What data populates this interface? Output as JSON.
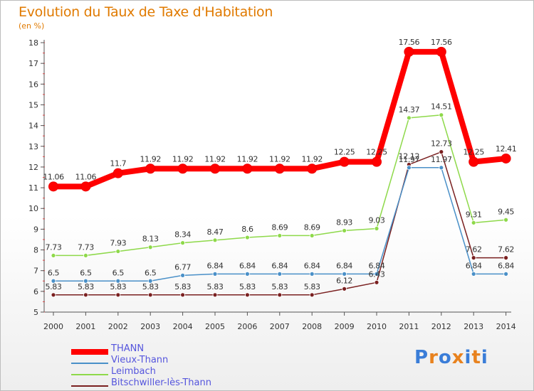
{
  "header": {
    "title": "Evolution du Taux de Taxe d'Habitation",
    "subtitle": "(en %)"
  },
  "logo": {
    "text": "Proxiti",
    "colors": [
      "#3a7dd8",
      "#e8821e",
      "#3a7dd8",
      "#e8821e",
      "#3a7dd8",
      "#e8821e",
      "#3a7dd8"
    ]
  },
  "chart_data": {
    "type": "line",
    "title": "Evolution du Taux de Taxe d'Habitation",
    "ylabel": "(en %)",
    "xlabel": "",
    "ylim": [
      5,
      18
    ],
    "yticks": [
      5,
      6,
      7,
      8,
      9,
      10,
      11,
      12,
      13,
      14,
      15,
      16,
      17,
      18
    ],
    "grid": false,
    "legend_position": "bottom-left",
    "x": [
      "2000",
      "2001",
      "2002",
      "2003",
      "2004",
      "2005",
      "2006",
      "2007",
      "2008",
      "2009",
      "2010",
      "2011",
      "2012",
      "2013",
      "2014"
    ],
    "series": [
      {
        "name": "THANN",
        "color": "#ff0000",
        "values": [
          11.06,
          11.06,
          11.7,
          11.92,
          11.92,
          11.92,
          11.92,
          11.92,
          11.92,
          12.25,
          12.25,
          17.56,
          17.56,
          12.25,
          12.41
        ],
        "labels": [
          "11.06",
          "11.06",
          "11.7",
          "11.92",
          "11.92",
          "11.92",
          "11.92",
          "11.92",
          "11.92",
          "12.25",
          "12.25",
          "17.56",
          "17.56",
          "12.25",
          "12.41"
        ]
      },
      {
        "name": "Vieux-Thann",
        "color": "#4a90c8",
        "values": [
          6.5,
          6.5,
          6.5,
          6.5,
          6.77,
          6.84,
          6.84,
          6.84,
          6.84,
          6.84,
          6.84,
          11.97,
          11.97,
          6.84,
          6.84
        ],
        "labels": [
          "6.5",
          "6.5",
          "6.5",
          "6.5",
          "6.77",
          "6.84",
          "6.84",
          "6.84",
          "6.84",
          "6.84",
          "6.84",
          "11.97",
          "11.97",
          "6.84",
          "6.84"
        ]
      },
      {
        "name": "Leimbach",
        "color": "#8ed94a",
        "values": [
          7.73,
          7.73,
          7.93,
          8.13,
          8.34,
          8.47,
          8.6,
          8.69,
          8.69,
          8.93,
          9.03,
          14.37,
          14.51,
          9.31,
          9.45
        ],
        "labels": [
          "7.73",
          "7.73",
          "7.93",
          "8.13",
          "8.34",
          "8.47",
          "8.6",
          "8.69",
          "8.69",
          "8.93",
          "9.03",
          "14.37",
          "14.51",
          "9.31",
          "9.45"
        ]
      },
      {
        "name": "Bitschwiller-lès-Thann",
        "color": "#7a2020",
        "values": [
          5.83,
          5.83,
          5.83,
          5.83,
          5.83,
          5.83,
          5.83,
          5.83,
          5.83,
          6.12,
          6.43,
          12.12,
          12.73,
          7.62,
          7.62
        ],
        "labels": [
          "5.83",
          "5.83",
          "5.83",
          "5.83",
          "5.83",
          "5.83",
          "5.83",
          "5.83",
          "5.83",
          "6.12",
          "6.43",
          "12.12",
          "12.73",
          "7.62",
          "7.62"
        ]
      }
    ]
  }
}
